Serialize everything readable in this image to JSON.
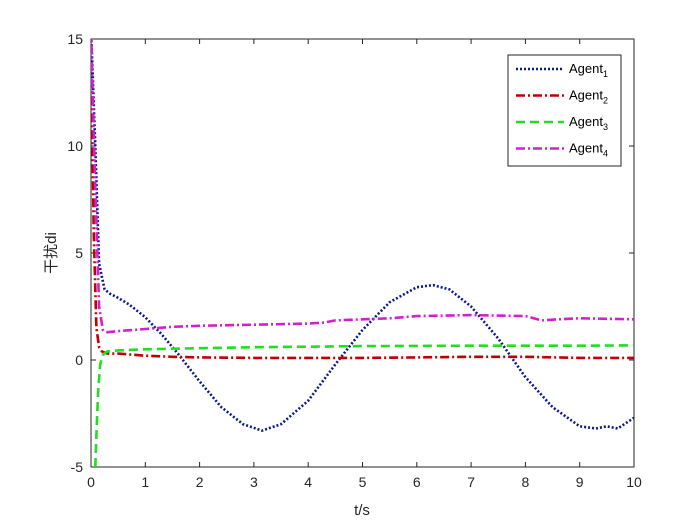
{
  "chart_data": {
    "type": "line",
    "xlabel": "t/s",
    "ylabel": "干扰di",
    "xlim": [
      0,
      10
    ],
    "ylim": [
      -5,
      15
    ],
    "x_ticks": [
      0,
      1,
      2,
      3,
      4,
      5,
      6,
      7,
      8,
      9,
      10
    ],
    "x_tick_labels": [
      "0",
      "1",
      "2",
      "3",
      "4",
      "5",
      "6",
      "7",
      "8",
      "9",
      "10"
    ],
    "y_ticks": [
      -5,
      0,
      5,
      10,
      15
    ],
    "y_tick_labels": [
      "-5",
      "0",
      "5",
      "10",
      "15"
    ],
    "grid": false,
    "legend_position": "top-right",
    "series": [
      {
        "name": "Agent",
        "subscript": "1",
        "color": "#0a1a8c",
        "dash": "dotted",
        "x": [
          0,
          0.08,
          0.15,
          0.25,
          0.35,
          0.5,
          0.7,
          1.0,
          1.3,
          1.6,
          2.0,
          2.4,
          2.8,
          3.15,
          3.5,
          4.0,
          4.5,
          5.0,
          5.5,
          6.0,
          6.3,
          6.6,
          7.0,
          7.5,
          8.0,
          8.5,
          9.0,
          9.3,
          9.5,
          9.7,
          10.0
        ],
        "y": [
          15.5,
          10.0,
          4.5,
          3.3,
          3.1,
          2.9,
          2.6,
          2.0,
          1.2,
          0.3,
          -1.0,
          -2.2,
          -3.0,
          -3.3,
          -3.0,
          -1.9,
          -0.2,
          1.4,
          2.7,
          3.4,
          3.5,
          3.3,
          2.5,
          1.0,
          -0.8,
          -2.2,
          -3.1,
          -3.2,
          -3.1,
          -3.2,
          -2.7
        ]
      },
      {
        "name": "Agent",
        "subscript": "2",
        "color": "#c00000",
        "dash": "dashdot",
        "x": [
          0,
          0.05,
          0.1,
          0.15,
          0.2,
          0.3,
          0.5,
          1.0,
          1.5,
          2.0,
          3.0,
          4.0,
          5.0,
          6.0,
          7.0,
          8.0,
          9.0,
          10.0
        ],
        "y": [
          15.5,
          6.0,
          1.5,
          0.6,
          0.4,
          0.3,
          0.3,
          0.2,
          0.15,
          0.12,
          0.1,
          0.1,
          0.1,
          0.12,
          0.15,
          0.15,
          0.1,
          0.1
        ]
      },
      {
        "name": "Agent",
        "subscript": "3",
        "color": "#22dd22",
        "dash": "dashed",
        "x": [
          0.08,
          0.1,
          0.13,
          0.17,
          0.22,
          0.3,
          0.5,
          1.0,
          2.0,
          3.0,
          4.0,
          5.0,
          6.0,
          7.0,
          8.0,
          9.0,
          10.0
        ],
        "y": [
          -5.0,
          -3.5,
          -1.5,
          -0.2,
          0.25,
          0.4,
          0.45,
          0.5,
          0.55,
          0.6,
          0.62,
          0.65,
          0.66,
          0.67,
          0.67,
          0.67,
          0.68
        ]
      },
      {
        "name": "Agent",
        "subscript": "4",
        "color": "#d020d0",
        "dash": "dashdot",
        "x": [
          0,
          0.08,
          0.15,
          0.22,
          0.3,
          0.5,
          1.0,
          1.5,
          2.0,
          3.0,
          4.0,
          4.3,
          4.5,
          5.0,
          5.5,
          6.0,
          7.0,
          8.0,
          8.3,
          8.6,
          9.0,
          10.0
        ],
        "y": [
          15.5,
          8.0,
          2.5,
          1.4,
          1.3,
          1.35,
          1.45,
          1.55,
          1.6,
          1.65,
          1.7,
          1.75,
          1.85,
          1.9,
          1.95,
          2.05,
          2.1,
          2.05,
          1.85,
          1.9,
          1.95,
          1.9
        ]
      }
    ]
  }
}
